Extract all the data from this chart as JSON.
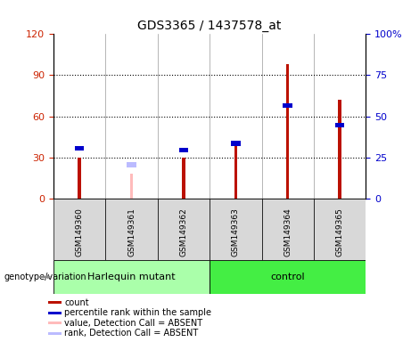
{
  "title": "GDS3365 / 1437578_at",
  "samples": [
    "GSM149360",
    "GSM149361",
    "GSM149362",
    "GSM149363",
    "GSM149364",
    "GSM149365"
  ],
  "groups": {
    "Harlequin mutant": [
      0,
      1,
      2
    ],
    "control": [
      3,
      4,
      5
    ]
  },
  "count_values": [
    30,
    null,
    30,
    38,
    98,
    72
  ],
  "percentile_values": [
    32,
    null,
    31,
    35,
    58,
    46
  ],
  "absent_count_values": [
    null,
    18,
    null,
    null,
    null,
    null
  ],
  "absent_percentile_values": [
    null,
    22,
    null,
    null,
    null,
    null
  ],
  "left_ylim": [
    0,
    120
  ],
  "right_ylim": [
    0,
    100
  ],
  "left_yticks": [
    0,
    30,
    60,
    90,
    120
  ],
  "right_yticks": [
    0,
    25,
    50,
    75,
    100
  ],
  "right_yticklabels": [
    "0",
    "25",
    "50",
    "75",
    "100%"
  ],
  "left_yticklabels": [
    "0",
    "30",
    "60",
    "90",
    "120"
  ],
  "left_tick_color": "#cc2200",
  "right_tick_color": "#0000cc",
  "bar_color_red": "#bb1100",
  "bar_color_blue": "#0000cc",
  "bar_color_pink": "#ffbbbb",
  "bar_color_lightblue": "#bbbbff",
  "group_color_harlequin": "#aaffaa",
  "group_color_control": "#44ee44",
  "bg_color": "#d8d8d8",
  "plot_bg": "#ffffff",
  "legend": [
    {
      "label": "count",
      "color": "#bb1100"
    },
    {
      "label": "percentile rank within the sample",
      "color": "#0000cc"
    },
    {
      "label": "value, Detection Call = ABSENT",
      "color": "#ffbbbb"
    },
    {
      "label": "rank, Detection Call = ABSENT",
      "color": "#bbbbff"
    }
  ],
  "genotype_label": "genotype/variation"
}
